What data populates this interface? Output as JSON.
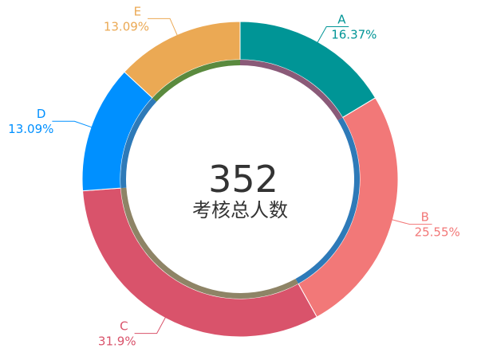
{
  "chart_data": {
    "type": "pie",
    "variant": "donut",
    "center": {
      "value": "352",
      "label": "考核总人数"
    },
    "categories": [
      "A",
      "B",
      "C",
      "D",
      "E"
    ],
    "values": [
      16.37,
      25.55,
      31.9,
      13.09,
      13.09
    ],
    "percent_labels": [
      "16.37%",
      "25.55%",
      "31.9%",
      "13.09%",
      "13.09%"
    ],
    "colors": [
      "#009596",
      "#F27878",
      "#D9536B",
      "#0090FF",
      "#EBA954"
    ],
    "inner_ring_colors": [
      "#8A5A78",
      "#2E7AB8",
      "#8E8466",
      "#2E7AB8",
      "#5A8A3E"
    ],
    "legend": "none",
    "grid": false
  }
}
